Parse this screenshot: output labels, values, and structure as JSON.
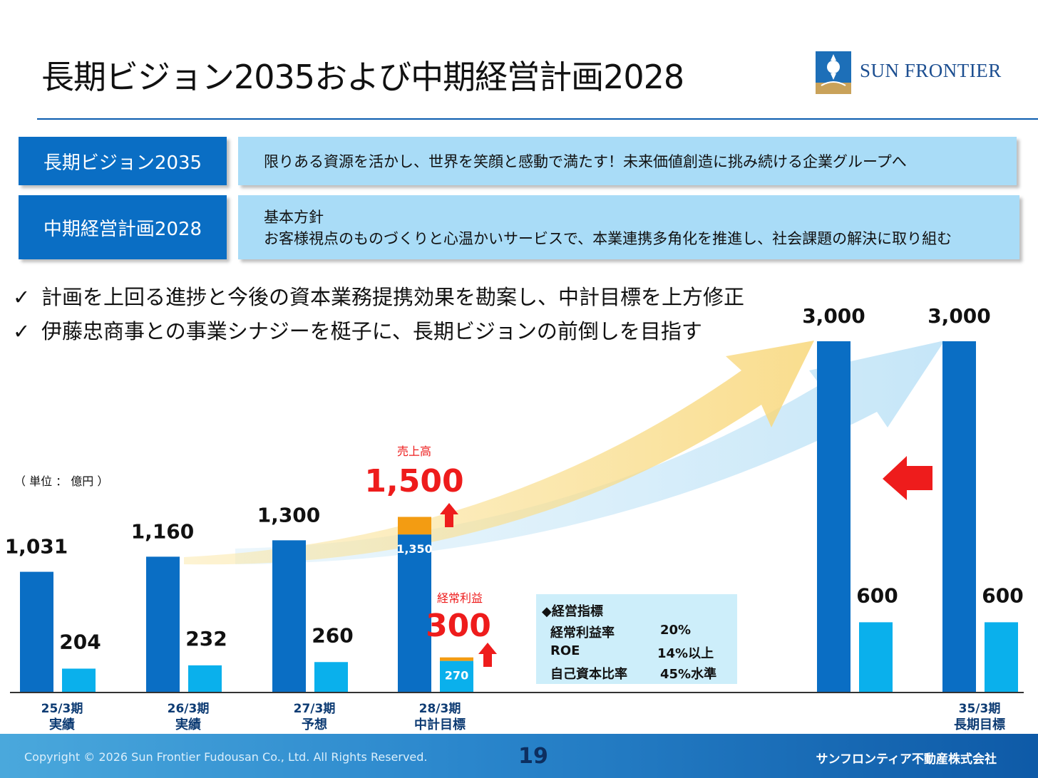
{
  "header": {
    "title": "長期ビジョン2035および中期経営計画2028",
    "logo_text": "SUN FRONTIER",
    "logo_icon": "sun-frontier-logo-icon"
  },
  "vision": {
    "label": "長期ビジョン2035",
    "text": "限りある資源を活かし、世界を笑顔と感動で満たす！未来価値創造に挑み続ける企業グループへ"
  },
  "plan": {
    "label": "中期経営計画2028",
    "heading": "基本方針",
    "text": "お客様視点のものづくりと心温かいサービスで、本業連携多角化を推進し、社会課題の解決に取り組む"
  },
  "checks": [
    {
      "mark": "✓",
      "text": "計画を上回る進捗と今後の資本業務提携効果を勘案し、中計目標を上方修正"
    },
    {
      "mark": "✓",
      "text": "伊藤忠商事との事業シナジーを梃子に、長期ビジョンの前倒しを目指す"
    }
  ],
  "unit_note": "（ 単位 ： 億円 ）",
  "chart_data": {
    "type": "bar",
    "categories": [
      {
        "period": "25/3期",
        "status": "実績"
      },
      {
        "period": "26/3期",
        "status": "実績"
      },
      {
        "period": "27/3期",
        "status": "予想"
      },
      {
        "period": "28/3期",
        "status": "中計目標"
      },
      {
        "period": "",
        "status": ""
      },
      {
        "period": "35/3期",
        "status": "長期目標"
      }
    ],
    "series": [
      {
        "name": "売上高",
        "values": [
          1031,
          1160,
          1300,
          1500,
          3000,
          3000
        ],
        "color": "#0a6ec4"
      },
      {
        "name": "経常利益",
        "values": [
          204,
          232,
          260,
          300,
          600,
          600
        ],
        "color": "#0ab0ec"
      }
    ],
    "revised": {
      "sales": {
        "label": "売上高",
        "previous": 1350,
        "new": 1500,
        "previous_label": "1,350",
        "new_label": "1,500"
      },
      "profit": {
        "label": "経常利益",
        "previous": 270,
        "new": 300,
        "previous_label": "270",
        "new_label": "300"
      }
    },
    "value_labels": {
      "sales": [
        "1,031",
        "1,160",
        "1,300",
        "1,500",
        "3,000",
        "3,000"
      ],
      "profit": [
        "204",
        "232",
        "260",
        "300",
        "600",
        "600"
      ]
    },
    "colors": {
      "sales": "#0a6ec4",
      "profit": "#0ab0ec",
      "increase": "#f39c12",
      "highlight": "#ee1c1c"
    }
  },
  "indicators": {
    "title": "◆経営指標",
    "rows": [
      {
        "name": "経常利益率",
        "value": "20%"
      },
      {
        "name": "ROE",
        "value": "14%以上"
      },
      {
        "name": "自己資本比率",
        "value": "45%水準"
      }
    ]
  },
  "footer": {
    "copyright": "Copyright © 2026 Sun Frontier Fudousan Co., Ltd. All Rights Reserved.",
    "page_number": "19",
    "company": "サンフロンティア不動産株式会社"
  }
}
